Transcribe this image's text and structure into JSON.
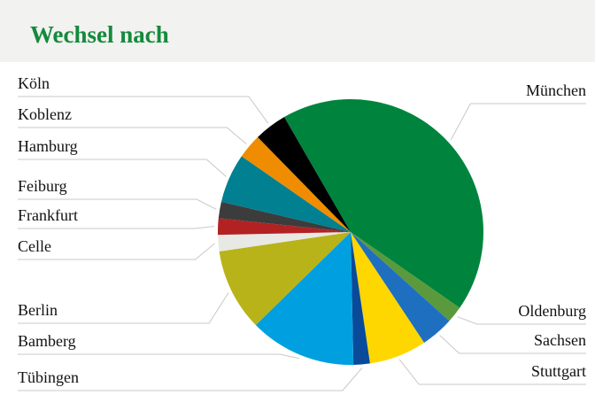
{
  "chart_data": {
    "type": "pie",
    "title": "Wechsel nach",
    "categories": [
      "München",
      "Oldenburg",
      "Sachsen",
      "Stuttgart",
      "Tübingen",
      "Bamberg",
      "Berlin",
      "Celle",
      "Frankfurt",
      "Feiburg",
      "Hamburg",
      "Koblenz",
      "Köln"
    ],
    "values": [
      43,
      2,
      4,
      7,
      2,
      13,
      10,
      2,
      2,
      2,
      6,
      3,
      4
    ],
    "colors": [
      "#00843d",
      "#5a9a3c",
      "#1f6fc0",
      "#ffd700",
      "#0a4a9a",
      "#00a0e0",
      "#b8b318",
      "#e8e8e4",
      "#b22222",
      "#3c3c3c",
      "#008090",
      "#f08c00",
      "#000000"
    ]
  }
}
